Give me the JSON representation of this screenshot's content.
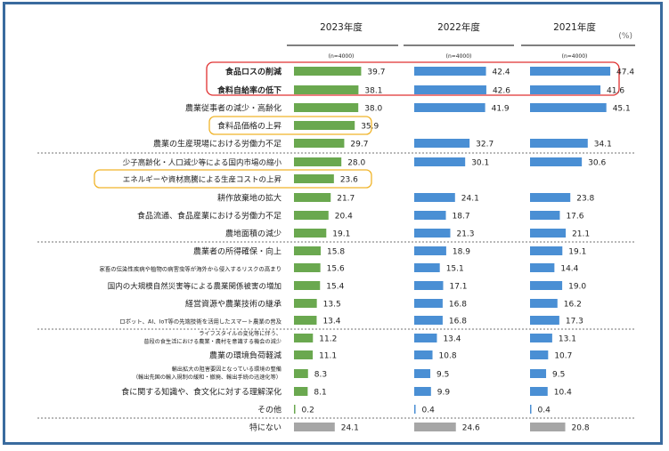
{
  "chart_data": {
    "type": "bar",
    "unit": "(%)",
    "categories": [
      "食品ロスの削減",
      "食料自給率の低下",
      "農業従事者の減少・高齢化",
      "食料品価格の上昇",
      "農業の生産現場における労働力不足",
      "少子高齢化・人口減少等による国内市場の縮小",
      "エネルギーや資材高騰による生産コストの上昇",
      "耕作放棄地の拡大",
      "食品流通、食品産業における労働力不足",
      "農地面積の減少",
      "農業者の所得確保・向上",
      "家畜の伝染性疾病や植物の病害虫等が海外から侵入するリスクの高まり",
      "国内の大規模自然災害等による農業関係被害の増加",
      "経営資源や農業技術の継承",
      "ロボット、AI、IoT等の先端技術を活用したスマート農業の普及",
      [
        "ライフスタイルの変化等に伴う、",
        "普段の食生活における農業・農村を意識する機会の減少"
      ],
      "農業の環境負荷軽減",
      [
        "輸出拡大の阻害要因となっている環境の整備",
        "（輸出先国の輸入規制の緩和・撤廃、輸出手続の迅速化等）"
      ],
      "食に関する知識や、食文化に対する理解深化",
      "その他",
      "特にない"
    ],
    "series": [
      {
        "name": "2023年度",
        "n": "(n=4000)",
        "values": [
          39.7,
          38.1,
          38.0,
          35.9,
          29.7,
          28.0,
          23.6,
          21.7,
          20.4,
          19.1,
          15.8,
          15.6,
          15.4,
          13.5,
          13.4,
          11.2,
          11.1,
          8.3,
          8.1,
          0.2,
          24.1
        ]
      },
      {
        "name": "2022年度",
        "n": "(n=4000)",
        "values": [
          42.4,
          42.6,
          41.9,
          null,
          32.7,
          30.1,
          null,
          24.1,
          18.7,
          21.3,
          18.9,
          15.1,
          17.1,
          16.8,
          16.8,
          13.4,
          10.8,
          9.5,
          9.9,
          0.4,
          24.6
        ]
      },
      {
        "name": "2021年度",
        "n": "(n=4000)",
        "values": [
          47.4,
          41.6,
          45.1,
          null,
          34.1,
          30.6,
          null,
          23.8,
          17.6,
          21.1,
          19.1,
          14.4,
          19.0,
          16.2,
          17.3,
          13.1,
          10.7,
          9.5,
          10.4,
          0.4,
          20.8
        ]
      }
    ],
    "colors": {
      "y2023": "#6aa84f",
      "y2022": "#4a8fd4",
      "y2021": "#4a8fd4",
      "none": "#a6a6a6",
      "red_box": "#e03030",
      "orange_box": "#f0b429"
    },
    "highlights": {
      "red": [
        0,
        1
      ],
      "orange": [
        3,
        6
      ]
    },
    "bold_categories": [
      0,
      1
    ],
    "separators_after": [
      4,
      9,
      14,
      19
    ]
  }
}
